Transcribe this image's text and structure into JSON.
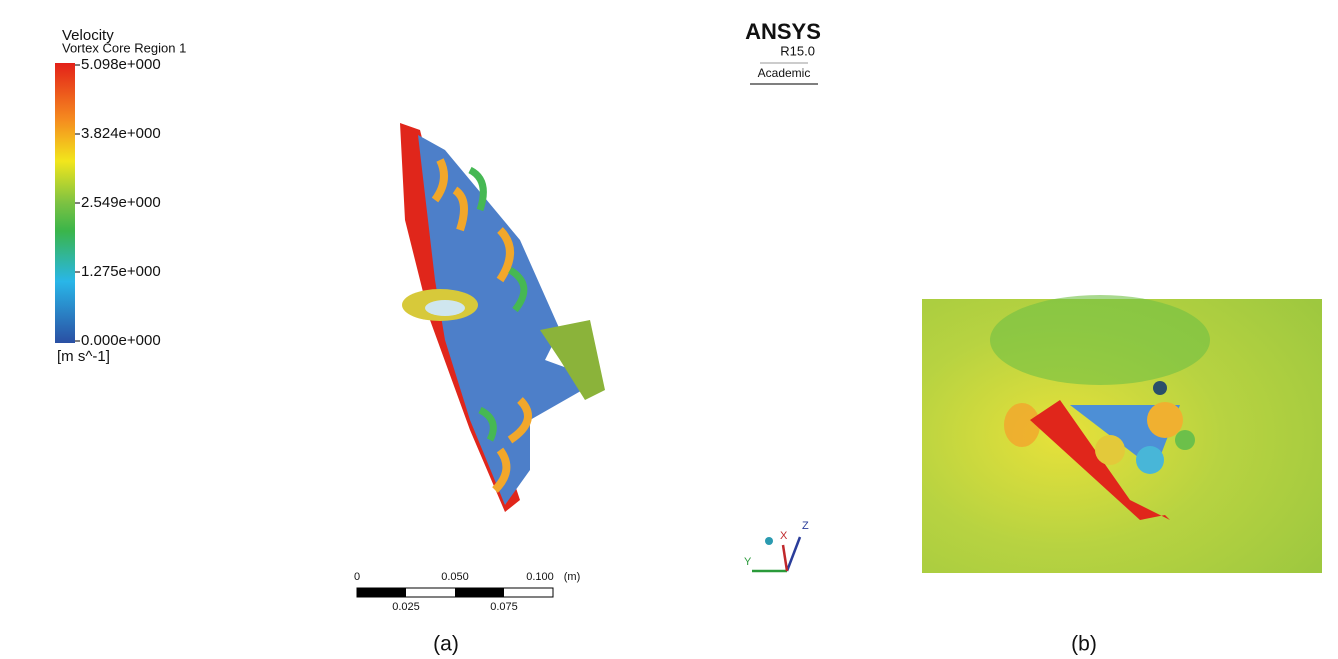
{
  "legend": {
    "title": "Velocity",
    "subtitle": "Vortex Core Region 1",
    "ticks": [
      "5.098e+000",
      "3.824e+000",
      "2.549e+000",
      "1.275e+000",
      "0.000e+000"
    ],
    "unit": "[m s^-1]"
  },
  "logo": {
    "name": "ANSYS",
    "version": "R15.0",
    "edition": "Academic"
  },
  "scale_bar": {
    "top_labels": [
      "0",
      "0.050",
      "0.100"
    ],
    "unit": "(m)",
    "bottom_labels": [
      "0.025",
      "0.075"
    ]
  },
  "triad": {
    "x": "X",
    "y": "Y",
    "z": "Z"
  },
  "captions": [
    "(a)",
    "(b)"
  ]
}
